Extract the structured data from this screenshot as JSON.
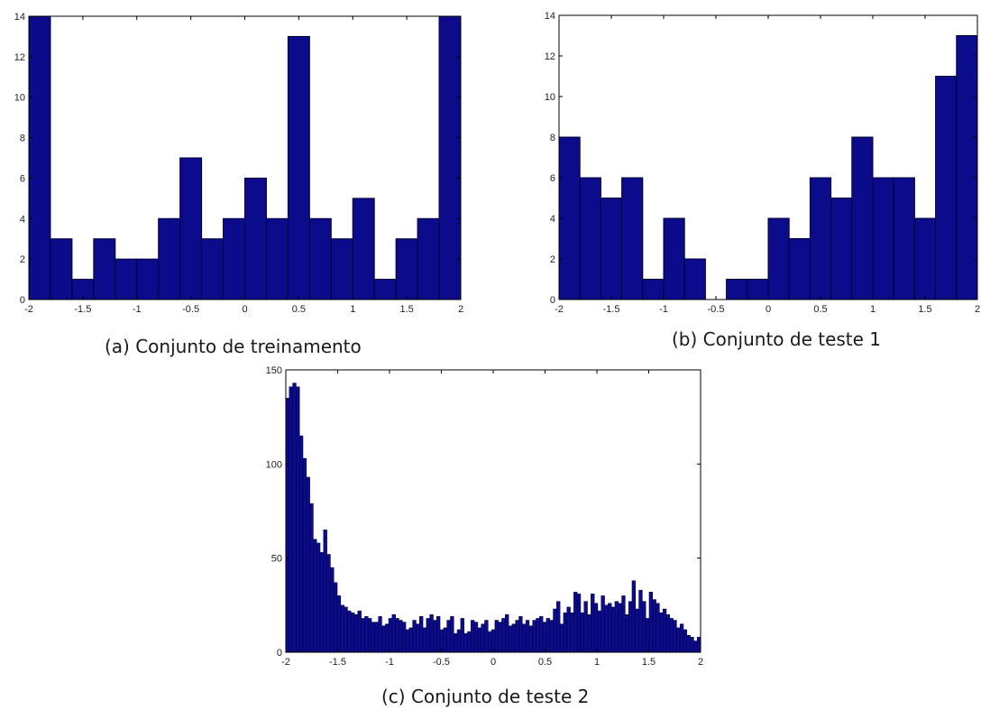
{
  "colors": {
    "bar": "#0b0b8c",
    "bar_edge": "#000033",
    "axis": "#000000"
  },
  "chart_data": [
    {
      "id": "a",
      "type": "bar",
      "caption": "(a) Conjunto de treinamento",
      "bin_edges": [
        -2,
        2
      ],
      "values": [
        14,
        3,
        1,
        3,
        2,
        2,
        4,
        7,
        3,
        4,
        6,
        4,
        13,
        4,
        3,
        5,
        1,
        3,
        4,
        14
      ],
      "xticks": [
        -2,
        -1.5,
        -1,
        -0.5,
        0,
        0.5,
        1,
        1.5,
        2
      ],
      "xtick_labels": [
        "-2",
        "-1.5",
        "-1",
        "-0.5",
        "0",
        "0.5",
        "1",
        "1.5",
        "2"
      ],
      "yticks": [
        0,
        2,
        4,
        6,
        8,
        10,
        12,
        14
      ],
      "ytick_labels": [
        "0",
        "2",
        "4",
        "6",
        "8",
        "10",
        "12",
        "14"
      ],
      "xlim": [
        -2,
        2
      ],
      "ylim": [
        0,
        14
      ],
      "grid": false
    },
    {
      "id": "b",
      "type": "bar",
      "caption": "(b) Conjunto de teste 1",
      "bin_edges": [
        -2,
        2
      ],
      "values": [
        8,
        6,
        5,
        6,
        1,
        4,
        2,
        0,
        1,
        1,
        4,
        3,
        6,
        5,
        8,
        6,
        6,
        4,
        11,
        13
      ],
      "xticks": [
        -2,
        -1.5,
        -1,
        -0.5,
        0,
        0.5,
        1,
        1.5,
        2
      ],
      "xtick_labels": [
        "-2",
        "-1.5",
        "-1",
        "-0.5",
        "0",
        "0.5",
        "1",
        "1.5",
        "2"
      ],
      "yticks": [
        0,
        2,
        4,
        6,
        8,
        10,
        12,
        14
      ],
      "ytick_labels": [
        "0",
        "2",
        "4",
        "6",
        "8",
        "10",
        "12",
        "14"
      ],
      "xlim": [
        -2,
        2
      ],
      "ylim": [
        0,
        14
      ],
      "grid": false
    },
    {
      "id": "c",
      "type": "bar",
      "caption": "(c) Conjunto de teste 2",
      "bin_edges": [
        -2,
        2
      ],
      "values": [
        135,
        141,
        143,
        141,
        115,
        103,
        93,
        79,
        60,
        58,
        53,
        65,
        52,
        45,
        37,
        30,
        25,
        24,
        22,
        21,
        20,
        22,
        18,
        19,
        18,
        16,
        16,
        19,
        14,
        15,
        18,
        20,
        18,
        17,
        16,
        12,
        13,
        17,
        15,
        19,
        13,
        18,
        20,
        17,
        19,
        12,
        13,
        17,
        19,
        10,
        12,
        18,
        10,
        11,
        17,
        16,
        13,
        15,
        17,
        11,
        12,
        17,
        16,
        18,
        20,
        14,
        15,
        17,
        19,
        15,
        17,
        14,
        17,
        18,
        19,
        16,
        18,
        17,
        23,
        27,
        15,
        21,
        24,
        21,
        32,
        31,
        21,
        27,
        20,
        31,
        26,
        22,
        30,
        25,
        26,
        24,
        27,
        26,
        30,
        20,
        27,
        38,
        23,
        33,
        27,
        18,
        32,
        28,
        26,
        21,
        23,
        20,
        18,
        17,
        13,
        15,
        12,
        9,
        8,
        6,
        8
      ],
      "xticks": [
        -2,
        -1.5,
        -1,
        -0.5,
        0,
        0.5,
        1,
        1.5,
        2
      ],
      "xtick_labels": [
        "-2",
        "-1.5",
        "-1",
        "-0.5",
        "0",
        "0.5",
        "1",
        "1.5",
        "2"
      ],
      "yticks": [
        0,
        50,
        100,
        150
      ],
      "ytick_labels": [
        "0",
        "50",
        "100",
        "150"
      ],
      "xlim": [
        -2,
        2
      ],
      "ylim": [
        0,
        150
      ],
      "grid": false
    }
  ]
}
